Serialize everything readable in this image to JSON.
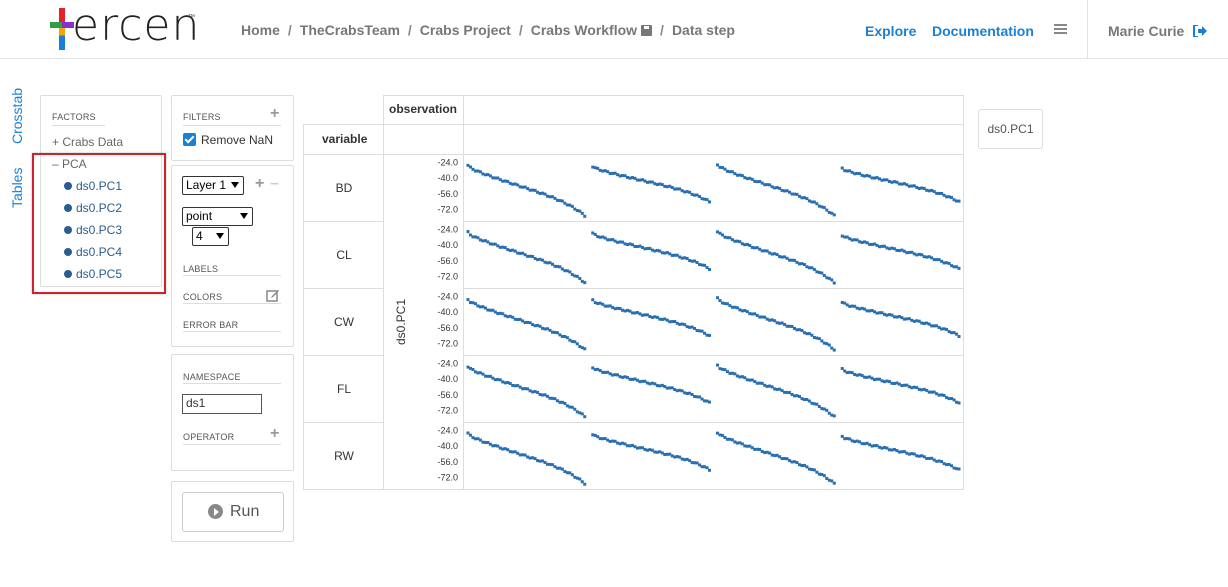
{
  "header": {
    "logo_text": "ercen",
    "logo_tm": "™",
    "breadcrumb": [
      "Home",
      "TheCrabsTeam",
      "Crabs Project",
      "Crabs Workflow",
      "Data step"
    ],
    "explore": "Explore",
    "documentation": "Documentation",
    "user": "Marie Curie"
  },
  "side_tabs": {
    "crosstab": "Crosstab",
    "tables": "Tables"
  },
  "factors": {
    "title": "FACTORS",
    "group1": "Crabs Data",
    "group2": "PCA",
    "items": [
      "ds0.PC1",
      "ds0.PC2",
      "ds0.PC3",
      "ds0.PC4",
      "ds0.PC5"
    ]
  },
  "filters": {
    "title": "FILTERS",
    "remove_nan": "Remove NaN",
    "remove_nan_checked": true
  },
  "layer": {
    "layer_select": "Layer 1",
    "type_select": "point",
    "size_select": "4",
    "labels": "LABELS",
    "colors": "COLORS",
    "error_bar": "ERROR BAR"
  },
  "namespace": {
    "title": "NAMESPACE",
    "value": "ds1",
    "operator": "OPERATOR"
  },
  "run_label": "Run",
  "crosstab": {
    "col_header": "observation",
    "row_header": "variable",
    "y_axis_label": "ds0.PC1",
    "rows": [
      "BD",
      "CL",
      "CW",
      "FL",
      "RW"
    ],
    "y_ticks": [
      "-24.0",
      "-40.0",
      "-56.0",
      "-72.0"
    ]
  },
  "ds_box": "ds0.PC1",
  "colors": {
    "accent": "#1a7fd6",
    "point": "#2a6fb0",
    "highlight": "#d0222a"
  },
  "chart_data": {
    "type": "scatter",
    "facets_rows": [
      "BD",
      "CL",
      "CW",
      "FL",
      "RW"
    ],
    "ylabel": "ds0.PC1",
    "yticks": [
      -24,
      -40,
      -56,
      -72
    ],
    "ylim": [
      -80,
      -20
    ],
    "groups": 4,
    "group_series": [
      {
        "start": -27,
        "end": -78
      },
      {
        "start": -28,
        "end": -64
      },
      {
        "start": -26,
        "end": -78
      },
      {
        "start": -30,
        "end": -64
      }
    ]
  }
}
